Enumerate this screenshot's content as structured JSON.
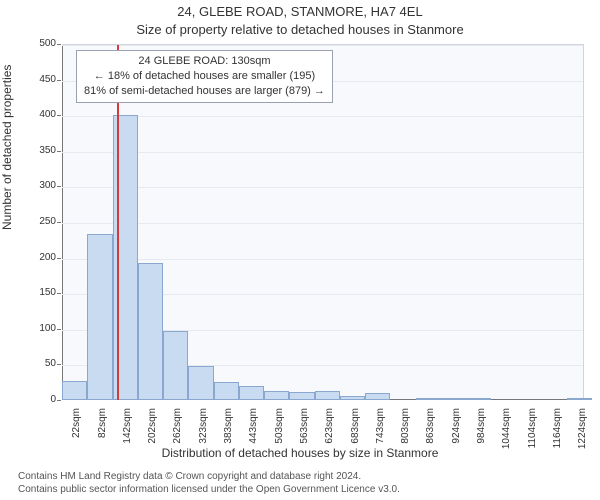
{
  "title_line1": "24, GLEBE ROAD, STANMORE, HA7 4EL",
  "title_line2": "Size of property relative to detached houses in Stanmore",
  "ylabel": "Number of detached properties",
  "xlabel": "Distribution of detached houses by size in Stanmore",
  "footer_line1": "Contains HM Land Registry data © Crown copyright and database right 2024.",
  "footer_line2": "Contains public sector information licensed under the Open Government Licence v3.0.",
  "annotation": {
    "line1": "24 GLEBE ROAD: 130sqm",
    "line2": "← 18% of detached houses are smaller (195)",
    "line3": "81% of semi-detached houses are larger (879) →"
  },
  "chart": {
    "type": "histogram",
    "background_color": "#f8f9fc",
    "grid_color": "#e6e9ef",
    "axis_color": "#777777",
    "bar_fill": "#c9dbf0",
    "bar_border": "#8aa8cf",
    "marker_color": "#d63b3b",
    "marker_x": 130,
    "xlim": [
      0,
      1240
    ],
    "ylim": [
      0,
      500
    ],
    "yticks": [
      0,
      50,
      100,
      150,
      200,
      250,
      300,
      350,
      400,
      450,
      500
    ],
    "xticks": [
      {
        "v": 22,
        "label": "22sqm"
      },
      {
        "v": 82,
        "label": "82sqm"
      },
      {
        "v": 142,
        "label": "142sqm"
      },
      {
        "v": 202,
        "label": "202sqm"
      },
      {
        "v": 262,
        "label": "262sqm"
      },
      {
        "v": 323,
        "label": "323sqm"
      },
      {
        "v": 383,
        "label": "383sqm"
      },
      {
        "v": 443,
        "label": "443sqm"
      },
      {
        "v": 503,
        "label": "503sqm"
      },
      {
        "v": 563,
        "label": "563sqm"
      },
      {
        "v": 623,
        "label": "623sqm"
      },
      {
        "v": 683,
        "label": "683sqm"
      },
      {
        "v": 743,
        "label": "743sqm"
      },
      {
        "v": 803,
        "label": "803sqm"
      },
      {
        "v": 863,
        "label": "863sqm"
      },
      {
        "v": 924,
        "label": "924sqm"
      },
      {
        "v": 984,
        "label": "984sqm"
      },
      {
        "v": 1044,
        "label": "1044sqm"
      },
      {
        "v": 1104,
        "label": "1104sqm"
      },
      {
        "v": 1164,
        "label": "1164sqm"
      },
      {
        "v": 1224,
        "label": "1224sqm"
      }
    ],
    "bin_width_data": 60,
    "bars": [
      {
        "x": 0,
        "y": 27
      },
      {
        "x": 60,
        "y": 233
      },
      {
        "x": 120,
        "y": 400
      },
      {
        "x": 180,
        "y": 192
      },
      {
        "x": 240,
        "y": 97
      },
      {
        "x": 300,
        "y": 48
      },
      {
        "x": 360,
        "y": 25
      },
      {
        "x": 420,
        "y": 20
      },
      {
        "x": 480,
        "y": 12
      },
      {
        "x": 540,
        "y": 11
      },
      {
        "x": 600,
        "y": 12
      },
      {
        "x": 660,
        "y": 5
      },
      {
        "x": 720,
        "y": 10
      },
      {
        "x": 780,
        "y": 0
      },
      {
        "x": 840,
        "y": 3
      },
      {
        "x": 900,
        "y": 2
      },
      {
        "x": 960,
        "y": 2
      },
      {
        "x": 1020,
        "y": 0
      },
      {
        "x": 1080,
        "y": 0
      },
      {
        "x": 1140,
        "y": 0
      },
      {
        "x": 1200,
        "y": 2
      }
    ],
    "title_fontsize": 13,
    "label_fontsize": 12,
    "tick_fontsize": 10,
    "annot_fontsize": 11
  }
}
